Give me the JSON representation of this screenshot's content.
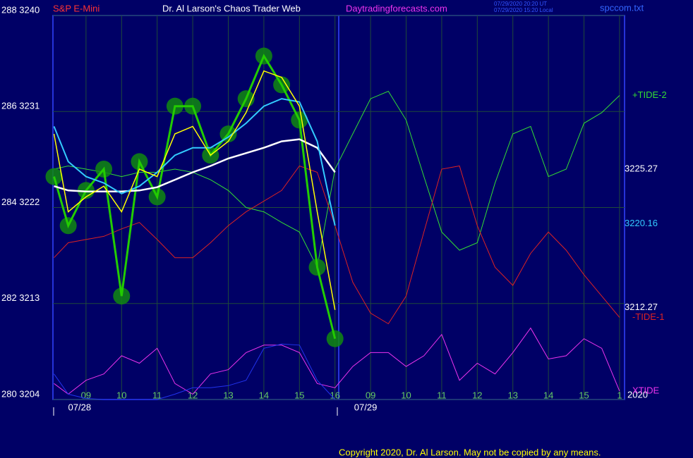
{
  "chart_data": {
    "type": "line",
    "instrument": "S&P E-Mini",
    "title": "Dr. Al Larson's Chaos Trader Web",
    "site": "Daytradingforecasts.com",
    "stamp": [
      "07/29/2020 20:20 UT",
      "07/29/2020 15:20 Local"
    ],
    "file": "spccom.txt",
    "copyright": "Copyright 2020, Dr. Al Larson. May not be copied by any means.",
    "year": "2020",
    "x": [
      0.1,
      0.5,
      1,
      1.5,
      2,
      2.5,
      3,
      3.5,
      4,
      4.5,
      5,
      5.5,
      6,
      6.5,
      7,
      7.5,
      8,
      8.5,
      9,
      9.5,
      10,
      10.5,
      11,
      11.5,
      12,
      12.5,
      13,
      13.5,
      14,
      14.5,
      15,
      15.5,
      16
    ],
    "xlim": [
      0.07,
      16.14
    ],
    "xticks": [
      {
        "value": 1,
        "label": "09"
      },
      {
        "value": 2,
        "label": "10"
      },
      {
        "value": 3,
        "label": "11"
      },
      {
        "value": 4,
        "label": "12"
      },
      {
        "value": 5,
        "label": "13"
      },
      {
        "value": 6,
        "label": "14"
      },
      {
        "value": 7,
        "label": "15"
      },
      {
        "value": 8,
        "label": "16"
      },
      {
        "value": 9,
        "label": "09"
      },
      {
        "value": 10,
        "label": "10"
      },
      {
        "value": 11,
        "label": "11"
      },
      {
        "value": 12,
        "label": "12"
      },
      {
        "value": 13,
        "label": "13"
      },
      {
        "value": 14,
        "label": "14"
      },
      {
        "value": 15,
        "label": "15"
      },
      {
        "value": 16,
        "label": "1"
      }
    ],
    "days": [
      {
        "x": 0.82,
        "label": "07/28"
      },
      {
        "x": 8.86,
        "label": "07/29"
      }
    ],
    "ylim": [
      3204,
      3240
    ],
    "yticks": [
      {
        "value": 3240,
        "label": "288 3240"
      },
      {
        "value": 3231,
        "label": "286 3231"
      },
      {
        "value": 3222,
        "label": "284 3222"
      },
      {
        "value": 3213,
        "label": "282 3213"
      },
      {
        "value": 3204,
        "label": "280 3204"
      }
    ],
    "grid": true,
    "right_values": [
      {
        "value": 3225.27,
        "color": "#ffffff"
      },
      {
        "value": 3220.16,
        "color": "#33ccff"
      },
      {
        "value": 3212.27,
        "color": "#ffffff"
      }
    ],
    "series": [
      {
        "name": "+TIDE-2",
        "color": "#33dd33",
        "width": 1,
        "values": [
          3225.6,
          3225.9,
          3225.6,
          3225.3,
          3224.9,
          3225.3,
          3225.3,
          3225.6,
          3225.3,
          3224.6,
          3223.6,
          3222.0,
          3221.6,
          3220.6,
          3219.7,
          3216.4,
          3225.6,
          3228.9,
          3232.2,
          3232.9,
          3230.2,
          3224.9,
          3219.7,
          3218.0,
          3218.7,
          3224.3,
          3228.9,
          3229.6,
          3224.9,
          3225.6,
          3229.9,
          3230.9,
          3232.5
        ]
      },
      {
        "name": "-TIDE-1",
        "color": "#dd2222",
        "width": 1,
        "values": [
          3217.3,
          3218.7,
          3219.0,
          3219.3,
          3220.0,
          3220.6,
          3219.0,
          3217.3,
          3217.3,
          3218.7,
          3220.3,
          3221.6,
          3222.6,
          3223.6,
          3225.9,
          3225.3,
          3220.3,
          3215.0,
          3212.1,
          3211.1,
          3213.7,
          3219.7,
          3225.6,
          3225.9,
          3220.3,
          3216.4,
          3214.7,
          3217.7,
          3219.7,
          3218.0,
          3215.7,
          3213.7,
          3211.7
        ]
      },
      {
        "name": "XTIDE",
        "color": "#ee33ee",
        "width": 1,
        "values": [
          3205.5,
          3204.5,
          3205.8,
          3206.4,
          3208.1,
          3207.4,
          3208.8,
          3205.5,
          3204.5,
          3206.4,
          3206.8,
          3208.4,
          3209.1,
          3209.1,
          3208.4,
          3205.5,
          3205.1,
          3207.1,
          3208.4,
          3208.4,
          3207.1,
          3208.1,
          3210.1,
          3205.8,
          3207.4,
          3206.4,
          3208.4,
          3210.7,
          3207.8,
          3208.1,
          3209.7,
          3208.8,
          3204.8
        ]
      },
      {
        "color": "#2233ee",
        "width": 1,
        "values": [
          3206.4,
          3204.5,
          3204.1,
          3204.0,
          3204.0,
          3204.0,
          3204.0,
          3204.5,
          3205.1,
          3205.1,
          3205.3,
          3205.8,
          3208.8,
          3209.2,
          3209.1,
          3205.8,
          3204.0,
          null,
          null,
          null,
          null,
          null,
          null,
          null,
          null,
          null,
          null,
          null,
          null,
          null,
          null,
          null,
          null
        ]
      },
      {
        "color": "#22cc00",
        "width": 3,
        "marker": true,
        "values": [
          3224.9,
          3220.3,
          3223.6,
          3225.6,
          3213.7,
          3226.3,
          3223.0,
          3231.5,
          3231.5,
          3226.9,
          3228.9,
          3232.2,
          3236.2,
          3233.5,
          3230.2,
          3216.4,
          3209.7,
          null,
          null,
          null,
          null,
          null,
          null,
          null,
          null,
          null,
          null,
          null,
          null,
          null,
          null,
          null,
          null
        ]
      },
      {
        "color": "#ffffff",
        "width": 2.5,
        "values": [
          3224.0,
          3223.6,
          3223.5,
          3223.5,
          3223.5,
          3223.6,
          3223.9,
          3224.6,
          3225.3,
          3225.9,
          3226.6,
          3227.1,
          3227.6,
          3228.2,
          3228.4,
          3227.6,
          3225.3,
          null,
          null,
          null,
          null,
          null,
          null,
          null,
          null,
          null,
          null,
          null,
          null,
          null,
          null,
          null,
          null
        ]
      },
      {
        "color": "#33ccff",
        "width": 2,
        "values": [
          3229.6,
          3226.3,
          3224.9,
          3224.3,
          3223.3,
          3224.0,
          3225.3,
          3226.9,
          3227.6,
          3227.6,
          3228.6,
          3229.9,
          3231.5,
          3232.2,
          3231.9,
          3228.2,
          3220.3,
          null,
          null,
          null,
          null,
          null,
          null,
          null,
          null,
          null,
          null,
          null,
          null,
          null,
          null,
          null,
          null
        ]
      },
      {
        "color": "#ffff00",
        "width": 1.5,
        "values": [
          3228.9,
          3221.6,
          3223.0,
          3224.0,
          3221.6,
          3225.6,
          3224.9,
          3228.9,
          3229.6,
          3226.9,
          3228.2,
          3230.9,
          3234.8,
          3234.2,
          3231.5,
          3221.6,
          3212.4,
          null,
          null,
          null,
          null,
          null,
          null,
          null,
          null,
          null,
          null,
          null,
          null,
          null,
          null,
          null,
          null
        ]
      }
    ]
  }
}
